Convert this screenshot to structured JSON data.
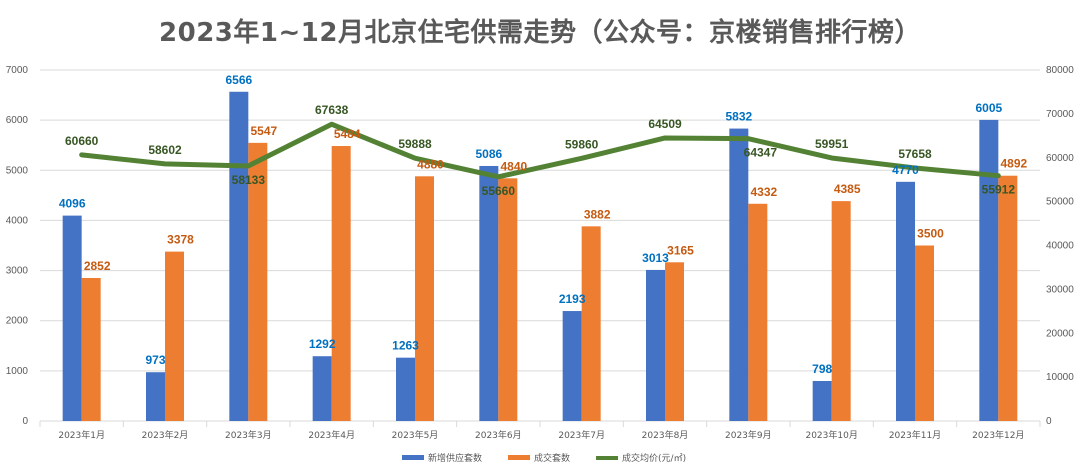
{
  "chart_data": {
    "type": "bar",
    "title": "2023年1~12月北京住宅供需走势（公众号：京楼销售排行榜）",
    "categories": [
      "2023年1月",
      "2023年2月",
      "2023年3月",
      "2023年4月",
      "2023年5月",
      "2023年6月",
      "2023年7月",
      "2023年8月",
      "2023年9月",
      "2023年10月",
      "2023年11月",
      "2023年12月"
    ],
    "y_left_lim": [
      0,
      7000
    ],
    "y_left_ticks": [
      "0",
      "1000",
      "2000",
      "3000",
      "4000",
      "5000",
      "6000",
      "7000"
    ],
    "y_right_lim": [
      0,
      80000
    ],
    "y_right_ticks": [
      "0",
      "10000",
      "20000",
      "30000",
      "40000",
      "50000",
      "60000",
      "70000",
      "80000"
    ],
    "grid": true,
    "legend_position": "bottom",
    "series": [
      {
        "name": "新增供应套数",
        "kind": "bar",
        "axis": "left",
        "color": "#4472C4",
        "label_color": "#0070C0",
        "values": [
          4096,
          973,
          6566,
          1292,
          1263,
          5086,
          2193,
          3013,
          5832,
          798,
          4770,
          6005
        ]
      },
      {
        "name": "成交套数",
        "kind": "bar",
        "axis": "left",
        "color": "#ED7D31",
        "label_color": "#C55A11",
        "values": [
          2852,
          3378,
          5547,
          5484,
          4880,
          4840,
          3882,
          3165,
          4332,
          4385,
          3500,
          4892
        ]
      },
      {
        "name": "成交均价(元/㎡)",
        "kind": "line",
        "axis": "right",
        "color": "#548235",
        "label_color": "#375623",
        "values": [
          60660,
          58602,
          58133,
          67638,
          59888,
          55660,
          59860,
          64509,
          64347,
          59951,
          57658,
          55912
        ]
      }
    ]
  }
}
